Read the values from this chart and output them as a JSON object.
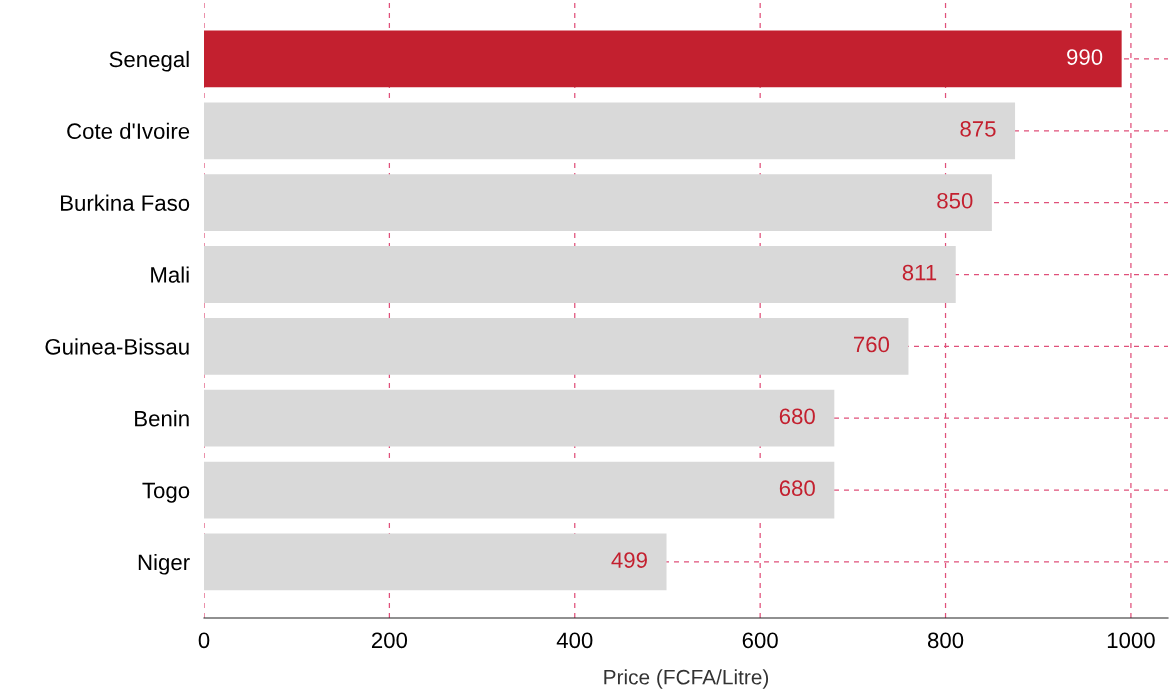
{
  "chart_data": {
    "type": "bar",
    "orientation": "horizontal",
    "xlabel": "Price (FCFA/Litre)",
    "categories": [
      "Senegal",
      "Cote d'Ivoire",
      "Burkina Faso",
      "Mali",
      "Guinea-Bissau",
      "Benin",
      "Togo",
      "Niger"
    ],
    "values": [
      990,
      875,
      850,
      811,
      760,
      680,
      680,
      499
    ],
    "colors": [
      "#c3202f",
      "#d9d9d9",
      "#d9d9d9",
      "#d9d9d9",
      "#d9d9d9",
      "#d9d9d9",
      "#d9d9d9",
      "#d9d9d9"
    ],
    "xlim": [
      0,
      1040
    ],
    "xticks": [
      0,
      200,
      400,
      600,
      800,
      1000
    ],
    "grid": true,
    "data_labels": true
  }
}
